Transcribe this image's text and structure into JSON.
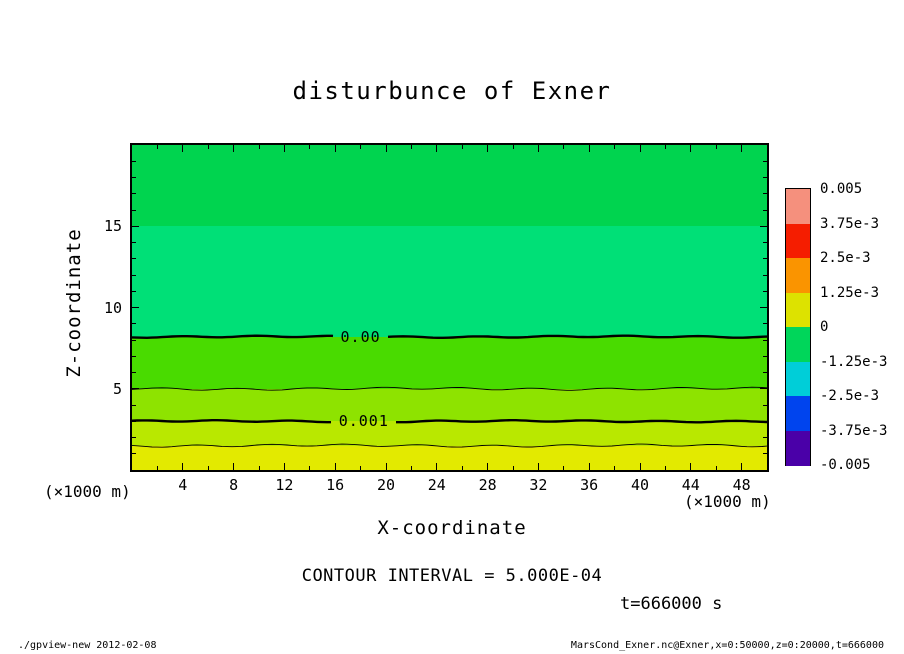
{
  "chart_data": {
    "type": "filled_contour",
    "title": "disturbunce of Exner",
    "xlabel": "X-coordinate",
    "ylabel": "Z-coordinate",
    "x_unit": "(×1000 m)",
    "z_unit": "(×1000 m)",
    "x_range": [
      0,
      50
    ],
    "z_range": [
      0,
      20
    ],
    "x_ticks": [
      4,
      8,
      12,
      16,
      20,
      24,
      28,
      32,
      36,
      40,
      44,
      48
    ],
    "z_ticks": [
      5,
      10,
      15
    ],
    "x_minor_step": 2,
    "z_minor_step": 1,
    "grid": false,
    "bands": [
      {
        "z_from": 15,
        "z_to": 20,
        "color": "#00d44f"
      },
      {
        "z_from": 8.2,
        "z_to": 15,
        "color": "#00e077"
      },
      {
        "z_from": 5,
        "z_to": 8.2,
        "color": "#49db00"
      },
      {
        "z_from": 3,
        "z_to": 5,
        "color": "#8ee300"
      },
      {
        "z_from": 1.5,
        "z_to": 3,
        "color": "#b9e800"
      },
      {
        "z_from": 0,
        "z_to": 1.5,
        "color": "#e3ea00"
      }
    ],
    "contours": [
      {
        "value": 0.0,
        "label": "0.00",
        "z": 8.2,
        "thick": true,
        "label_x_frac": 0.36
      },
      {
        "value": 0.0005,
        "label": null,
        "z": 5.0,
        "thick": false,
        "label_x_frac": null
      },
      {
        "value": 0.001,
        "label": "0.001",
        "z": 3.0,
        "thick": true,
        "label_x_frac": 0.365
      },
      {
        "value": 0.0015,
        "label": null,
        "z": 1.5,
        "thick": false,
        "label_x_frac": null
      }
    ],
    "contour_interval": "5.000E-04",
    "colorbar": {
      "labels": [
        "0.005",
        "3.75e-3",
        "2.5e-3",
        "1.25e-3",
        "0",
        "-1.25e-3",
        "-2.5e-3",
        "-3.75e-3",
        "-0.005"
      ],
      "segments": [
        "#f5907d",
        "#f51d00",
        "#fa9400",
        "#dde200",
        "#00d65a",
        "#00ced8",
        "#0044ee",
        "#4a00a8"
      ]
    }
  },
  "notes": {
    "contour_interval": "CONTOUR INTERVAL = 5.000E-04",
    "time": "t=666000 s"
  },
  "footer": {
    "left": "./gpview-new  2012-02-08",
    "right": "MarsCond_Exner.nc@Exner,x=0:50000,z=0:20000,t=666000"
  }
}
